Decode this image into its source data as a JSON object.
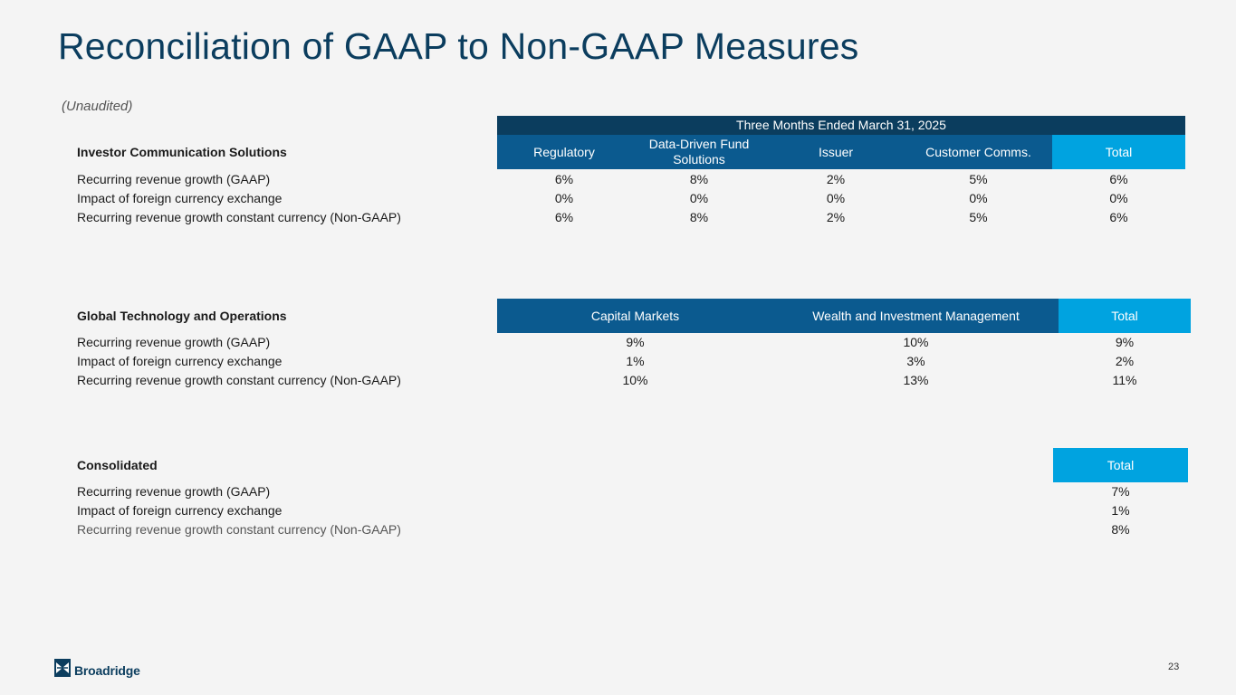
{
  "title": "Reconciliation of GAAP to Non-GAAP Measures",
  "subtitle": "(Unaudited)",
  "ics": {
    "period_header": "Three Months Ended March 31, 2025",
    "label": "Investor Communication Solutions",
    "columns": [
      "Regulatory",
      "Data-Driven Fund Solutions",
      "Issuer",
      "Customer Comms.",
      "Total"
    ],
    "rows": [
      {
        "label": "Recurring revenue growth (GAAP)",
        "values": [
          "6%",
          "8%",
          "2%",
          "5%",
          "6%"
        ]
      },
      {
        "label": "Impact of foreign currency exchange",
        "values": [
          "0%",
          "0%",
          "0%",
          "0%",
          "0%"
        ]
      },
      {
        "label": "Recurring revenue growth constant currency (Non-GAAP)",
        "values": [
          "6%",
          "8%",
          "2%",
          "5%",
          "6%"
        ]
      }
    ]
  },
  "gto": {
    "label": "Global Technology and Operations",
    "columns": [
      "Capital Markets",
      "Wealth and Investment Management",
      "Total"
    ],
    "rows": [
      {
        "label": "Recurring revenue growth (GAAP)",
        "values": [
          "9%",
          "10%",
          "9%"
        ]
      },
      {
        "label": "Impact of foreign currency exchange",
        "values": [
          "1%",
          "3%",
          "2%"
        ]
      },
      {
        "label": "Recurring revenue growth constant currency (Non-GAAP)",
        "values": [
          "10%",
          "13%",
          "11%"
        ]
      }
    ]
  },
  "consolidated": {
    "label": "Consolidated",
    "columns": [
      "Total"
    ],
    "rows": [
      {
        "label": "Recurring revenue growth (GAAP)",
        "values": [
          "7%"
        ]
      },
      {
        "label": "Impact of foreign currency exchange",
        "values": [
          "1%"
        ]
      },
      {
        "label": "Recurring revenue growth constant currency (Non-GAAP)",
        "values": [
          "8%"
        ]
      }
    ]
  },
  "footer": {
    "logo_text": "Broadridge",
    "logo_icon": "broadridge-logo-icon",
    "page_number": "23"
  },
  "colors": {
    "navy": "#0b3d5e",
    "blue": "#0b5a8f",
    "cyan": "#00a3e0"
  }
}
